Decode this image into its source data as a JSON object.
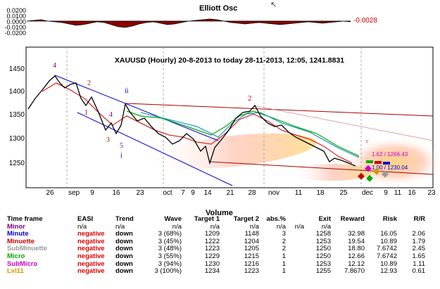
{
  "oscillator": {
    "title": "Elliott Osc",
    "ticks": [
      "0.0200",
      "0.0100",
      "0.0000",
      "-0.0100",
      "-0.0200"
    ],
    "current_value": "-0.0028"
  },
  "chart": {
    "title": "XAUUSD (Hourly)  20-8-2013 to today  28-11-2013, 12:05, 1241.8831",
    "y_ticks": [
      "1450",
      "1400",
      "1350",
      "1300",
      "1250"
    ],
    "x_ticks": [
      "26",
      "sep",
      "9",
      "16",
      "23",
      "oct",
      "7",
      "9",
      "14",
      "21",
      "28",
      "nov",
      "11",
      "18",
      "25",
      "dec",
      "9",
      "11",
      "16",
      "23"
    ],
    "wave_labels": [
      "4",
      "2",
      "ii",
      "1",
      "3",
      "4",
      "5",
      "i",
      "2",
      "c"
    ],
    "target_labels": [
      "1.62 / 1266.43",
      "1.00 / 1230.04"
    ]
  },
  "chart_data": {
    "type": "line",
    "title": "XAUUSD (Hourly)  20-8-2013 to today  28-11-2013, 12:05, 1241.8831",
    "ylim": [
      1200,
      1480
    ],
    "series": [
      {
        "values": [
          1370,
          1395,
          1420,
          1435,
          1410,
          1400,
          1380,
          1360,
          1330,
          1310,
          1290,
          1310,
          1340,
          1360,
          1330,
          1320,
          1310,
          1300,
          1290,
          1280,
          1275,
          1270,
          1290,
          1320,
          1330,
          1340,
          1355,
          1345,
          1330,
          1320,
          1300,
          1285,
          1270,
          1260,
          1250,
          1245,
          1242
        ]
      }
    ]
  },
  "volume_title": "Volume",
  "table": {
    "headers": [
      "Time frame",
      "EASI",
      "Trend",
      "Wave",
      "Target 1",
      "Target 2",
      "abs.%",
      "",
      "Exit",
      "Reward",
      "Risk",
      "R/R"
    ],
    "rows": [
      {
        "name": "Minor",
        "color": "#800080",
        "easi": "n/a",
        "trend": "n/a",
        "wave": "n/a",
        "t1": "n/a",
        "t2": "n/a",
        "abs": "n/a",
        "extra": "n/a",
        "exit": "n/a",
        "reward": "",
        "risk": "",
        "rr": ""
      },
      {
        "name": "Minute",
        "color": "#0000cc",
        "easi": "negative",
        "trend": "down",
        "wave": "3 (68%)",
        "t1": "1209",
        "t2": "1148",
        "abs": "3",
        "extra": "",
        "exit": "1258",
        "reward": "32.98",
        "risk": "16.05",
        "rr": "2.06"
      },
      {
        "name": "Minuette",
        "color": "#cc0000",
        "easi": "negative",
        "trend": "down",
        "wave": "3 (45%)",
        "t1": "1222",
        "t2": "1204",
        "abs": "2",
        "extra": "",
        "exit": "1253",
        "reward": "19.54",
        "risk": "10.89",
        "rr": "1.79"
      },
      {
        "name": "SubMinuette",
        "color": "#999999",
        "easi": "negative",
        "trend": "down",
        "wave": "3 (48%)",
        "t1": "1223",
        "t2": "1205",
        "abs": "2",
        "extra": "",
        "exit": "1250",
        "reward": "18.80",
        "risk": "7.6742",
        "rr": "2.45"
      },
      {
        "name": "Micro",
        "color": "#00aa00",
        "easi": "negative",
        "trend": "down",
        "wave": "3 (55%)",
        "t1": "1229",
        "t2": "1215",
        "abs": "1",
        "extra": "",
        "exit": "1250",
        "reward": "12.66",
        "risk": "7.6742",
        "rr": "1.65"
      },
      {
        "name": "SubMicro",
        "color": "#cc00cc",
        "easi": "negative",
        "trend": "down",
        "wave": "3 (94%)",
        "t1": "1230",
        "t2": "1216",
        "abs": "1",
        "extra": "",
        "exit": "1253",
        "reward": "12.12",
        "risk": "10.89",
        "rr": "1.11"
      },
      {
        "name": "Lvl11",
        "color": "#cc9900",
        "easi": "negative",
        "trend": "down",
        "wave": "3 (100%)",
        "t1": "1234",
        "t2": "1223",
        "abs": "1",
        "extra": "",
        "exit": "1255",
        "reward": "7.8670",
        "risk": "12.93",
        "rr": "0.61"
      }
    ]
  }
}
